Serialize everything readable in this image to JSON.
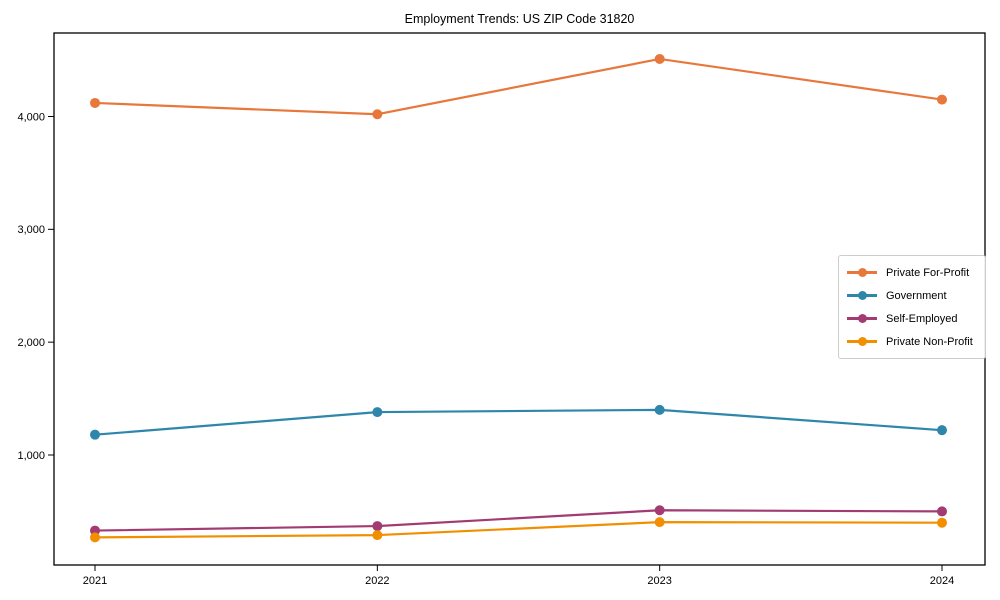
{
  "chart_data": {
    "type": "line",
    "title": "Employment Trends: US ZIP Code 31820",
    "categories": [
      "2021",
      "2022",
      "2023",
      "2024"
    ],
    "series": [
      {
        "name": "Private For-Profit",
        "color": "#E8773C",
        "values": [
          4120,
          4020,
          4510,
          4150
        ]
      },
      {
        "name": "Government",
        "color": "#2E86AB",
        "values": [
          1180,
          1380,
          1400,
          1220
        ]
      },
      {
        "name": "Self-Employed",
        "color": "#A23B72",
        "values": [
          330,
          370,
          510,
          500
        ]
      },
      {
        "name": "Private Non-Profit",
        "color": "#F18F01",
        "values": [
          270,
          290,
          405,
          400
        ]
      }
    ],
    "xlabel": "",
    "ylabel": "",
    "y_ticks": [
      1000,
      2000,
      3000,
      4000
    ],
    "y_tick_labels": [
      "1,000",
      "2,000",
      "3,000",
      "4,000"
    ],
    "ylim": [
      25,
      4740
    ],
    "grid": false,
    "marker": "circle",
    "legend_position": "center-right",
    "frame_color": "#000000",
    "background_color": "#ffffff"
  }
}
